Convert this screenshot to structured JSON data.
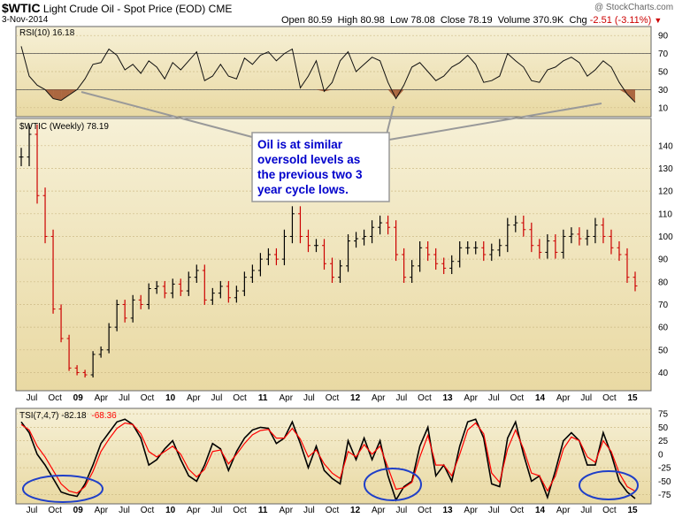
{
  "header": {
    "symbol": "$WTIC",
    "name": "Light Crude Oil - Spot Price (EOD)",
    "exchange": "CME",
    "date": "3-Nov-2014",
    "watermark": "@ StockCharts.com",
    "open_label": "Open",
    "open": "80.59",
    "high_label": "High",
    "high": "80.98",
    "low_label": "Low",
    "low": "78.08",
    "close_label": "Close",
    "close": "78.19",
    "volume_label": "Volume",
    "volume": "370.9K",
    "chg_label": "Chg",
    "chg": "-2.51 (-3.11%)"
  },
  "colors": {
    "panel_top": "#f6f0d6",
    "panel_bottom": "#e9d9a3",
    "price_up": "#000000",
    "price_down": "#cc0000",
    "rsi_fill": "#a0522d",
    "tsi_line": "#000000",
    "tsi_signal": "#ff0000",
    "annotation_text": "#0000cc",
    "circle": "#1f3fc8"
  },
  "annotation": {
    "text_lines": [
      "Oil is at similar",
      "oversold levels as",
      "the previous two 3",
      "year cycle lows."
    ]
  },
  "chart_data": [
    {
      "type": "line",
      "title": "RSI(10) 16.18",
      "last_value": 16.18,
      "ylim": [
        0,
        100
      ],
      "yticks": [
        10,
        30,
        50,
        70,
        90
      ],
      "reference_lines": [
        30,
        70
      ],
      "x": [
        "Jun-08",
        "Jul-08",
        "Aug-08",
        "Sep-08",
        "Oct-08",
        "Nov-08",
        "Dec-08",
        "Jan-09",
        "Feb-09",
        "Mar-09",
        "Apr-09",
        "May-09",
        "Jun-09",
        "Jul-09",
        "Aug-09",
        "Sep-09",
        "Oct-09",
        "Nov-09",
        "Dec-09",
        "Jan-10",
        "Feb-10",
        "Mar-10",
        "Apr-10",
        "May-10",
        "Jun-10",
        "Jul-10",
        "Aug-10",
        "Sep-10",
        "Oct-10",
        "Nov-10",
        "Dec-10",
        "Jan-11",
        "Feb-11",
        "Mar-11",
        "Apr-11",
        "May-11",
        "Jun-11",
        "Jul-11",
        "Aug-11",
        "Sep-11",
        "Oct-11",
        "Nov-11",
        "Dec-11",
        "Jan-12",
        "Feb-12",
        "Mar-12",
        "Apr-12",
        "May-12",
        "Jun-12",
        "Jul-12",
        "Aug-12",
        "Sep-12",
        "Oct-12",
        "Nov-12",
        "Dec-12",
        "Jan-13",
        "Feb-13",
        "Mar-13",
        "Apr-13",
        "May-13",
        "Jun-13",
        "Jul-13",
        "Aug-13",
        "Sep-13",
        "Oct-13",
        "Nov-13",
        "Dec-13",
        "Jan-14",
        "Feb-14",
        "Mar-14",
        "Apr-14",
        "May-14",
        "Jun-14",
        "Jul-14",
        "Aug-14",
        "Sep-14",
        "Oct-14",
        "Nov-14"
      ],
      "values": [
        78,
        45,
        35,
        30,
        20,
        18,
        24,
        30,
        42,
        58,
        60,
        75,
        68,
        52,
        58,
        48,
        62,
        55,
        42,
        60,
        52,
        62,
        72,
        40,
        45,
        58,
        45,
        42,
        65,
        58,
        68,
        72,
        62,
        70,
        75,
        32,
        45,
        62,
        28,
        38,
        62,
        72,
        50,
        58,
        66,
        62,
        38,
        20,
        35,
        55,
        60,
        50,
        40,
        45,
        55,
        60,
        68,
        58,
        38,
        40,
        45,
        70,
        62,
        55,
        40,
        38,
        52,
        55,
        62,
        66,
        60,
        45,
        52,
        62,
        55,
        38,
        25,
        16
      ]
    },
    {
      "type": "bar",
      "title": "$WTIC (Weekly) 78.19",
      "subtype": "ohlc",
      "last_value": 78.19,
      "ylim": [
        32,
        152
      ],
      "yticks": [
        40,
        50,
        60,
        70,
        80,
        90,
        100,
        110,
        120,
        130,
        140
      ],
      "x_tick_labels": [
        "Jul",
        "Oct",
        "09",
        "Apr",
        "Jul",
        "Oct",
        "10",
        "Apr",
        "Jul",
        "Oct",
        "11",
        "Apr",
        "Jul",
        "Oct",
        "12",
        "Apr",
        "Jul",
        "Oct",
        "13",
        "Apr",
        "Jul",
        "Oct",
        "14",
        "Apr",
        "Jul",
        "Oct",
        "15"
      ],
      "x": [
        "Jun-08",
        "Jul-08",
        "Aug-08",
        "Sep-08",
        "Oct-08",
        "Nov-08",
        "Dec-08",
        "Jan-09",
        "Feb-09",
        "Mar-09",
        "Apr-09",
        "May-09",
        "Jun-09",
        "Jul-09",
        "Aug-09",
        "Sep-09",
        "Oct-09",
        "Nov-09",
        "Dec-09",
        "Jan-10",
        "Feb-10",
        "Mar-10",
        "Apr-10",
        "May-10",
        "Jun-10",
        "Jul-10",
        "Aug-10",
        "Sep-10",
        "Oct-10",
        "Nov-10",
        "Dec-10",
        "Jan-11",
        "Feb-11",
        "Mar-11",
        "Apr-11",
        "May-11",
        "Jun-11",
        "Jul-11",
        "Aug-11",
        "Sep-11",
        "Oct-11",
        "Nov-11",
        "Dec-11",
        "Jan-12",
        "Feb-12",
        "Mar-12",
        "Apr-12",
        "May-12",
        "Jun-12",
        "Jul-12",
        "Aug-12",
        "Sep-12",
        "Oct-12",
        "Nov-12",
        "Dec-12",
        "Jan-13",
        "Feb-13",
        "Mar-13",
        "Apr-13",
        "May-13",
        "Jun-13",
        "Jul-13",
        "Aug-13",
        "Sep-13",
        "Oct-13",
        "Nov-13",
        "Dec-13",
        "Jan-14",
        "Feb-14",
        "Mar-14",
        "Apr-14",
        "May-14",
        "Jun-14",
        "Jul-14",
        "Aug-14",
        "Sep-14",
        "Oct-14",
        "Nov-14"
      ],
      "values": [
        135,
        145,
        118,
        100,
        68,
        55,
        42,
        40,
        39,
        48,
        50,
        60,
        70,
        64,
        72,
        70,
        77,
        78,
        75,
        79,
        76,
        82,
        85,
        72,
        75,
        78,
        73,
        76,
        82,
        85,
        90,
        92,
        90,
        100,
        110,
        100,
        96,
        96,
        88,
        82,
        87,
        98,
        99,
        100,
        104,
        106,
        104,
        92,
        82,
        87,
        95,
        92,
        88,
        86,
        89,
        95,
        95,
        95,
        92,
        94,
        96,
        105,
        106,
        103,
        96,
        93,
        98,
        93,
        100,
        101,
        99,
        100,
        105,
        100,
        95,
        92,
        82,
        78.19
      ]
    },
    {
      "type": "line",
      "title": "TSI(7,4,7) -82.18, -68.36",
      "ylim": [
        -92,
        85
      ],
      "yticks": [
        -75,
        -50,
        -25,
        0,
        25,
        50,
        75
      ],
      "series": [
        {
          "name": "TSI(7,4,7) -82.18",
          "last_value": -82.18,
          "values": [
            60,
            40,
            0,
            -20,
            -45,
            -70,
            -75,
            -78,
            -55,
            -20,
            20,
            40,
            60,
            65,
            55,
            30,
            -20,
            -10,
            10,
            25,
            -10,
            -40,
            -50,
            -20,
            20,
            10,
            -30,
            5,
            30,
            45,
            50,
            48,
            20,
            30,
            60,
            20,
            -25,
            15,
            -30,
            -45,
            -55,
            25,
            -10,
            30,
            -10,
            25,
            -40,
            -85,
            -60,
            -50,
            15,
            50,
            -40,
            -20,
            -50,
            15,
            60,
            65,
            30,
            -55,
            -60,
            30,
            60,
            0,
            -50,
            -40,
            -80,
            -30,
            25,
            40,
            25,
            -20,
            -20,
            40,
            0,
            -50,
            -70,
            -82.18
          ]
        },
        {
          "name": "-68.36",
          "last_value": -68.36,
          "values": [
            55,
            45,
            15,
            -5,
            -30,
            -55,
            -68,
            -72,
            -60,
            -32,
            5,
            28,
            48,
            58,
            55,
            38,
            5,
            -5,
            5,
            15,
            0,
            -28,
            -42,
            -28,
            5,
            8,
            -18,
            0,
            20,
            36,
            44,
            46,
            30,
            30,
            48,
            28,
            -5,
            8,
            -18,
            -35,
            -45,
            5,
            -5,
            18,
            0,
            15,
            -25,
            -65,
            -62,
            -52,
            -5,
            35,
            -20,
            -20,
            -40,
            0,
            45,
            58,
            38,
            -35,
            -52,
            10,
            45,
            10,
            -35,
            -40,
            -68,
            -40,
            10,
            32,
            25,
            -5,
            -15,
            25,
            5,
            -35,
            -60,
            -68.36
          ]
        }
      ]
    }
  ]
}
